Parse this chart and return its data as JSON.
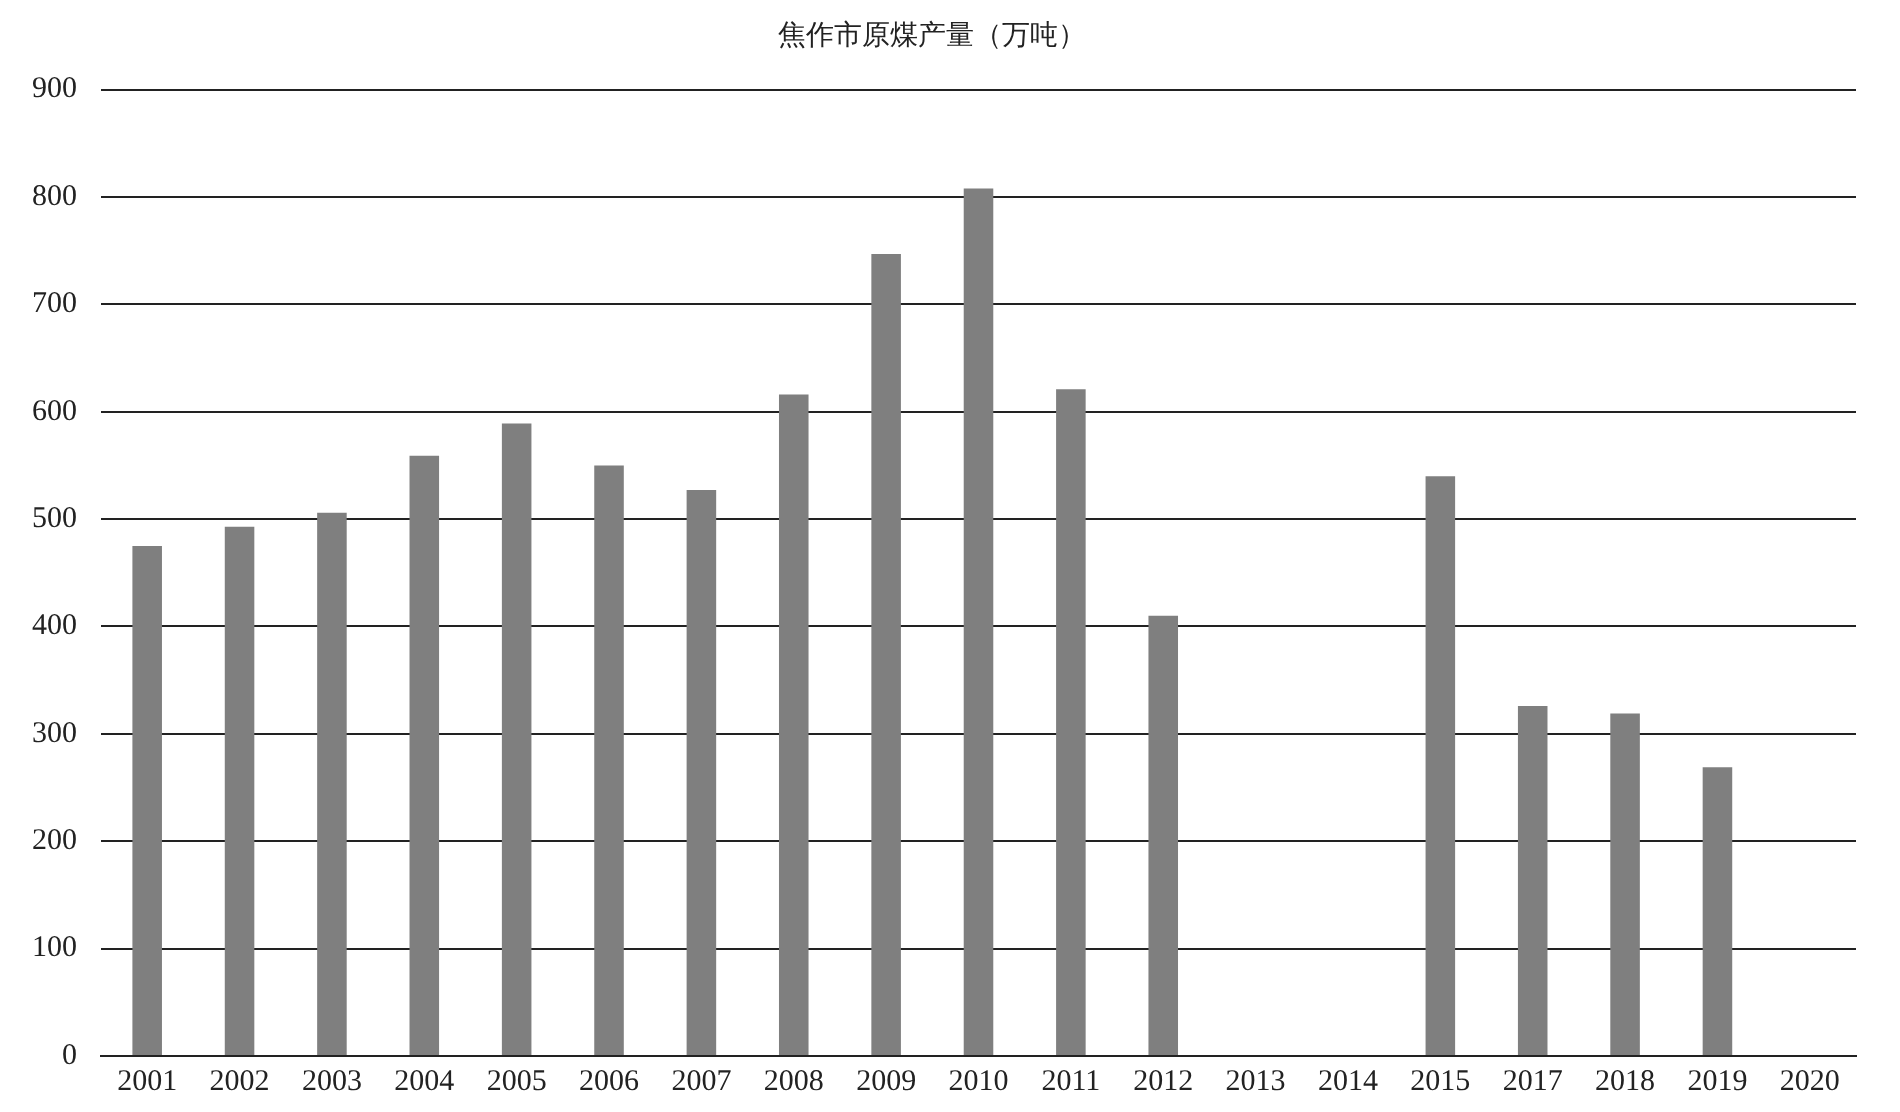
{
  "chart_data": {
    "type": "bar",
    "title": "焦作市原煤产量（万吨）",
    "categories": [
      "2001",
      "2002",
      "2003",
      "2004",
      "2005",
      "2006",
      "2007",
      "2008",
      "2009",
      "2010",
      "2011",
      "2012",
      "2013",
      "2014",
      "2015",
      "2017",
      "2018",
      "2019",
      "2020"
    ],
    "values": [
      475,
      493,
      506,
      559,
      589,
      550,
      527,
      616,
      747,
      808,
      621,
      410,
      null,
      null,
      540,
      326,
      319,
      269,
      null
    ],
    "color": "#7f7f7f",
    "ylim": [
      0,
      900
    ],
    "yticks": [
      0,
      100,
      200,
      300,
      400,
      500,
      600,
      700,
      800,
      900
    ],
    "grid": "y",
    "legend": false
  }
}
